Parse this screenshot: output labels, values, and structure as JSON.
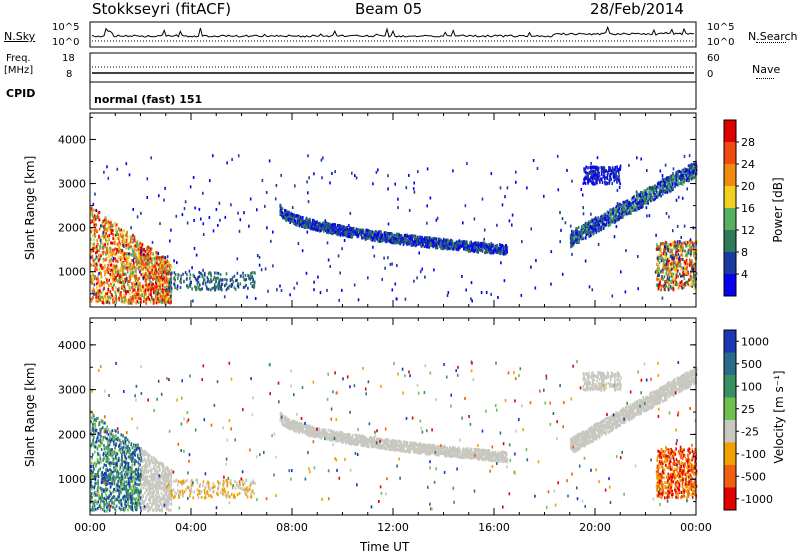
{
  "header": {
    "station": "Stokkseyri (fitACF)",
    "beam": "Beam 05",
    "date": "28/Feb/2014"
  },
  "top_panels": {
    "nsky_label": "N.Sky",
    "nsky_ticks": [
      "10^5",
      "10^0"
    ],
    "nsearch_label": "N.Search",
    "nsearch_ticks": [
      "10^5",
      "10^0"
    ],
    "freq_label": "Freq.",
    "freq_unit": "[MHz]",
    "freq_ticks": [
      "18",
      "8"
    ],
    "nave_label": "Nave",
    "nave_ticks": [
      "60",
      "0"
    ],
    "cpid_label": "CPID",
    "cpid_value": "normal (fast) 151"
  },
  "colors": {
    "power_scale": [
      "#0a00f0",
      "#1a3aa0",
      "#2f7a5a",
      "#56b060",
      "#f0d020",
      "#f08a10",
      "#f04a10",
      "#e00000"
    ],
    "velocity_scale": [
      "#1a37b8",
      "#2a6a8a",
      "#3a9060",
      "#70c050",
      "#c8c8c0",
      "#f0a000",
      "#f06010",
      "#e00000"
    ]
  },
  "chart_data": [
    {
      "type": "heatmap",
      "name": "power",
      "ylabel": "Slant Range [km]",
      "yticks": [
        1000,
        2000,
        3000,
        4000
      ],
      "ylim": [
        200,
        4600
      ],
      "xticks": [
        "00:00",
        "04:00",
        "08:00",
        "12:00",
        "16:00",
        "20:00",
        "00:00"
      ],
      "xlim": [
        0,
        24
      ],
      "colorbar": {
        "label": "Power [dB]",
        "ticks": [
          "28",
          "24",
          "20",
          "16",
          "12",
          "8",
          "4"
        ]
      }
    },
    {
      "type": "heatmap",
      "name": "velocity",
      "ylabel": "Slant Range [km]",
      "yticks": [
        1000,
        2000,
        3000,
        4000
      ],
      "ylim": [
        200,
        4600
      ],
      "xticks": [
        "00:00",
        "04:00",
        "08:00",
        "12:00",
        "16:00",
        "20:00",
        "00:00"
      ],
      "xlim": [
        0,
        24
      ],
      "xlabel": "Time UT",
      "colorbar": {
        "label": "Velocity [m s⁻¹]",
        "ticks": [
          "1000",
          "500",
          "100",
          "25",
          "-25",
          "-100",
          "-500",
          "-1000"
        ]
      }
    }
  ]
}
